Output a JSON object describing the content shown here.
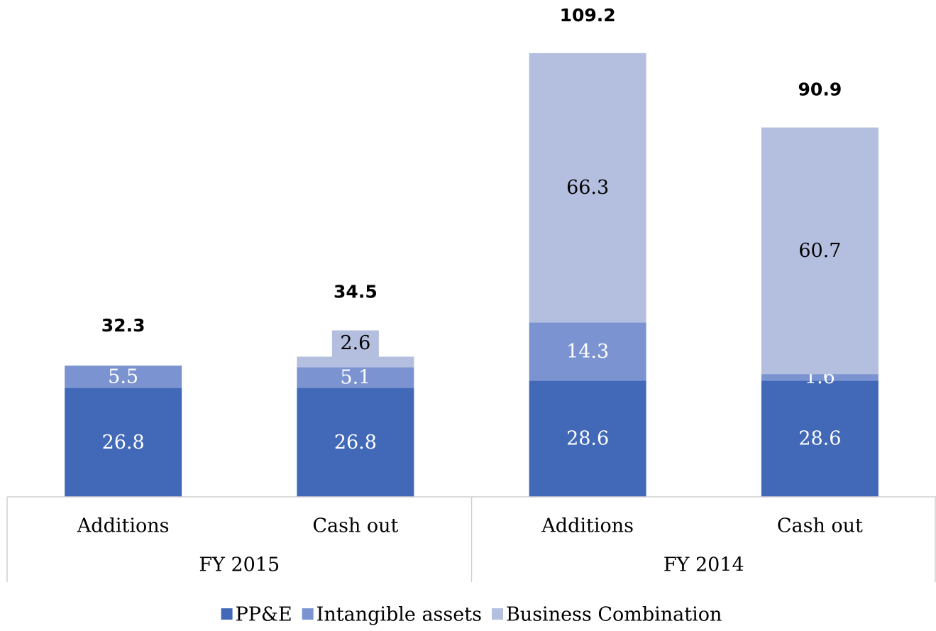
{
  "chart_data": {
    "type": "stacked-bar",
    "categories": [
      "Additions",
      "Cash out",
      "Additions",
      "Cash out"
    ],
    "groups": [
      "FY 2015",
      "FY 2014"
    ],
    "series": [
      {
        "name": "PP&E",
        "color": "#4169b8",
        "label_color": "#ffffff",
        "values": [
          26.8,
          26.8,
          28.6,
          28.6
        ]
      },
      {
        "name": "Intangible assets",
        "color": "#7b93d0",
        "label_color": "#ffffff",
        "values": [
          5.5,
          5.1,
          14.3,
          1.6
        ]
      },
      {
        "name": "Business Combination",
        "color": "#b4bfdf",
        "label_color": "#000000",
        "values": [
          null,
          2.6,
          66.3,
          60.7
        ]
      }
    ],
    "totals": [
      32.3,
      34.5,
      109.2,
      90.9
    ],
    "ylim": [
      0,
      120
    ],
    "legend": "bottom"
  }
}
